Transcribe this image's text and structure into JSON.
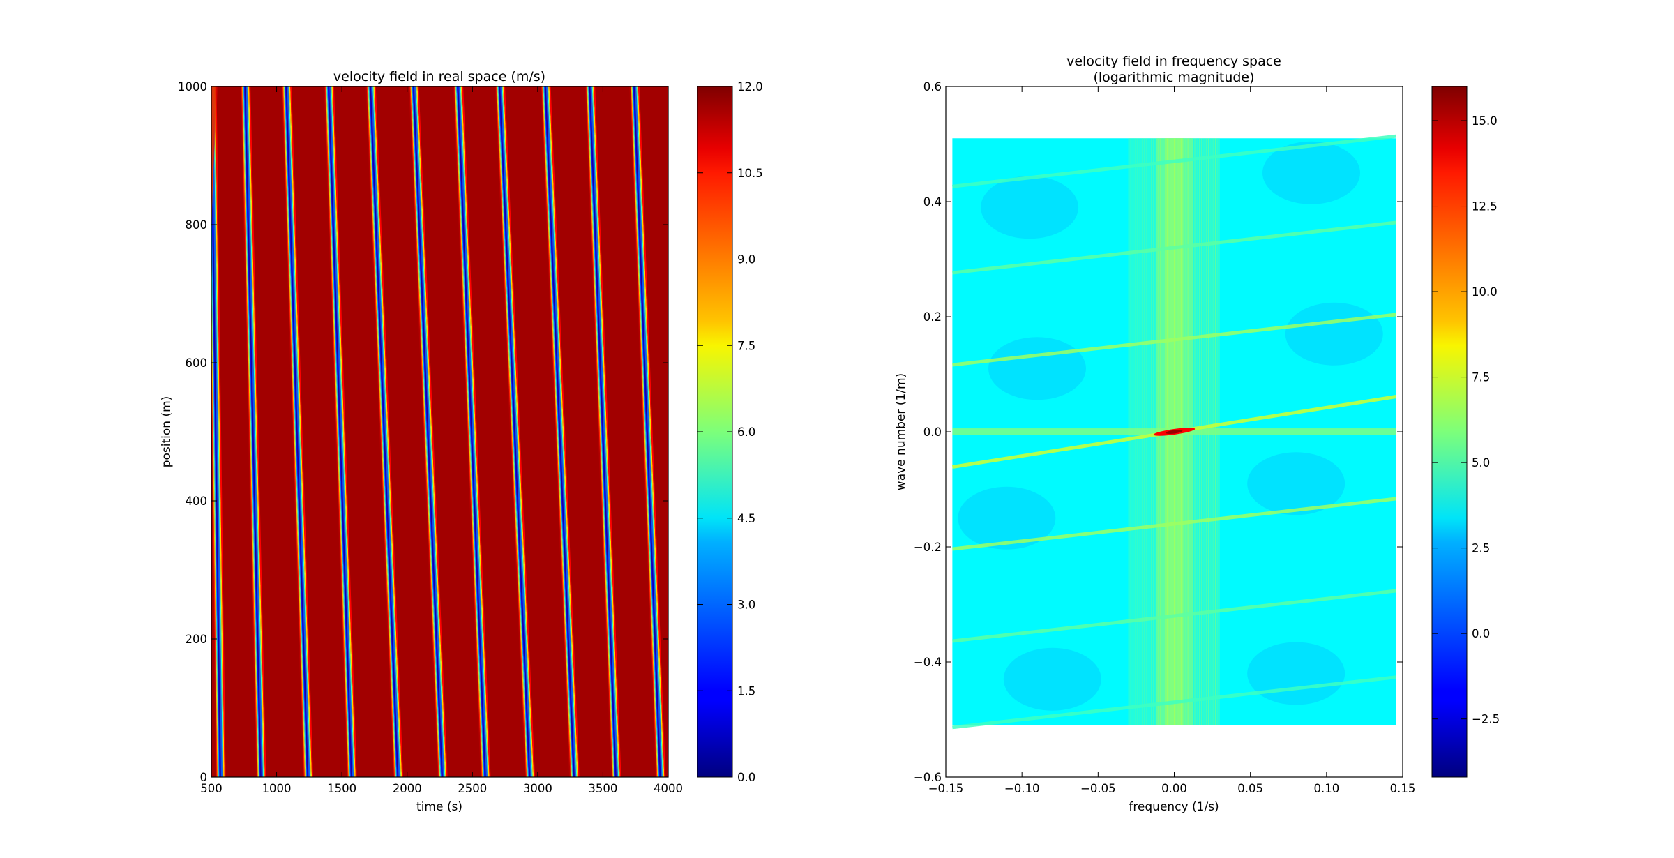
{
  "chart_data": [
    {
      "type": "heatmap",
      "title": "velocity field in real space (m/s)",
      "xlabel": "time (s)",
      "ylabel": "position (m)",
      "xlim": [
        500,
        4000
      ],
      "ylim": [
        0,
        1000
      ],
      "xticks": [
        500,
        1000,
        1500,
        2000,
        2500,
        3000,
        3500,
        4000
      ],
      "xtick_labels": [
        "500",
        "1000",
        "1500",
        "2000",
        "2500",
        "3000",
        "3500",
        "4000"
      ],
      "yticks": [
        0,
        200,
        400,
        600,
        800,
        1000
      ],
      "ytick_labels": [
        "0",
        "200",
        "400",
        "600",
        "800",
        "1000"
      ],
      "colormap": "jet",
      "colorbar": {
        "range": [
          0,
          12.0
        ],
        "ticks": [
          0,
          1.5,
          3,
          4.5,
          6,
          7.5,
          9,
          10.5,
          12
        ],
        "tick_labels": [
          "0.0",
          "1.5",
          "3.0",
          "4.5",
          "6.0",
          "7.5",
          "9.0",
          "10.5",
          "12.0"
        ]
      },
      "background_value": 11.6,
      "wave_fronts": [
        {
          "t_at_0": 570,
          "t_at_1000": 500
        },
        {
          "t_at_0": 880,
          "t_at_1000": 760
        },
        {
          "t_at_0": 1240,
          "t_at_1000": 1075
        },
        {
          "t_at_0": 1575,
          "t_at_1000": 1400
        },
        {
          "t_at_0": 1930,
          "t_at_1000": 1720
        },
        {
          "t_at_0": 2270,
          "t_at_1000": 2050
        },
        {
          "t_at_0": 2600,
          "t_at_1000": 2390
        },
        {
          "t_at_0": 2940,
          "t_at_1000": 2710
        },
        {
          "t_at_0": 3280,
          "t_at_1000": 3060
        },
        {
          "t_at_0": 3600,
          "t_at_1000": 3400
        },
        {
          "t_at_0": 3940,
          "t_at_1000": 3740
        }
      ]
    },
    {
      "type": "heatmap",
      "title": "velocity field in frequency space\n(logarithmic magnitude)",
      "xlabel": "frequency (1/s)",
      "ylabel": "wave number (1/m)",
      "xlim": [
        -0.15,
        0.15
      ],
      "ylim": [
        -0.6,
        0.6
      ],
      "xticks": [
        -0.15,
        -0.1,
        -0.05,
        0.0,
        0.05,
        0.1,
        0.15
      ],
      "xtick_labels": [
        "−0.15",
        "−0.10",
        "−0.05",
        "0.00",
        "0.05",
        "0.10",
        "0.15"
      ],
      "yticks": [
        -0.6,
        -0.4,
        -0.2,
        0.0,
        0.2,
        0.4,
        0.6
      ],
      "ytick_labels": [
        "−0.6",
        "−0.4",
        "−0.2",
        "0.0",
        "0.2",
        "0.4",
        "0.6"
      ],
      "data_extent": {
        "x": [
          -0.1457,
          0.1457
        ],
        "y": [
          -0.51,
          0.51
        ]
      },
      "colormap": "jet",
      "colorbar": {
        "range": [
          -4.2,
          16.0
        ],
        "ticks": [
          -2.5,
          0,
          2.5,
          5,
          7.5,
          10,
          12.5,
          15
        ],
        "tick_labels": [
          "−2.5",
          "0.0",
          "2.5",
          "5.0",
          "7.5",
          "10.0",
          "12.5",
          "15.0"
        ]
      },
      "background_value": 3.3,
      "ridges": [
        {
          "slope": 0.42,
          "offset": 0.0,
          "value": 7.5
        },
        {
          "slope": 0.3,
          "offset": 0.16,
          "value": 6.5
        },
        {
          "slope": 0.3,
          "offset": -0.16,
          "value": 6.5
        },
        {
          "slope": 0.3,
          "offset": 0.32,
          "value": 5.2
        },
        {
          "slope": 0.3,
          "offset": -0.32,
          "value": 5.2
        },
        {
          "slope": 0.3,
          "offset": 0.47,
          "value": 4.6
        },
        {
          "slope": 0.3,
          "offset": -0.47,
          "value": 4.6
        }
      ],
      "peak": {
        "x": 0.0,
        "y": 0.0,
        "value": 13.5
      }
    }
  ]
}
